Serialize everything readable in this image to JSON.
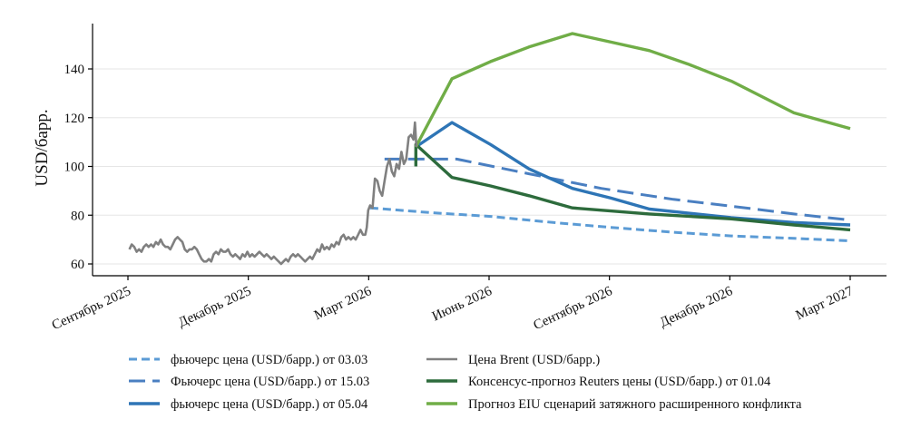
{
  "chart_data": {
    "type": "line",
    "title": "",
    "xlabel": "",
    "ylabel": "USD/барр.",
    "ylim": [
      55,
      158
    ],
    "yticks": [
      60,
      80,
      100,
      120,
      140
    ],
    "xlim": [
      2025.62,
      2027.25
    ],
    "grid": "horizontal",
    "xticks": [
      {
        "t": 2025.667,
        "label": "Сентябрь 2025"
      },
      {
        "t": 2025.917,
        "label": "Декабрь 2025"
      },
      {
        "t": 2026.167,
        "label": "Март 2026"
      },
      {
        "t": 2026.417,
        "label": "Июнь 2026"
      },
      {
        "t": 2026.667,
        "label": "Сентябрь 2026"
      },
      {
        "t": 2026.917,
        "label": "Декабрь 2026"
      },
      {
        "t": 2027.167,
        "label": "Март 2027"
      }
    ],
    "series": [
      {
        "name": "фьючерс цена (USD/барр.) от 03.03",
        "color": "#5b9bd5",
        "style": "dashed-short",
        "points": [
          [
            2026.17,
            83
          ],
          [
            2026.3,
            81
          ],
          [
            2026.42,
            79.5
          ],
          [
            2026.55,
            77
          ],
          [
            2026.67,
            75
          ],
          [
            2026.8,
            73
          ],
          [
            2026.92,
            71.5
          ],
          [
            2027.05,
            70.5
          ],
          [
            2027.167,
            69.5
          ]
        ]
      },
      {
        "name": "Фьючерс цена (USD/барр.) от 15.03",
        "color": "#4a7fc1",
        "style": "dashed-long",
        "points": [
          [
            2026.2,
            103
          ],
          [
            2026.28,
            103
          ],
          [
            2026.35,
            103
          ],
          [
            2026.5,
            97
          ],
          [
            2026.65,
            91
          ],
          [
            2026.8,
            86.5
          ],
          [
            2026.95,
            83
          ],
          [
            2027.05,
            80.5
          ],
          [
            2027.167,
            78
          ]
        ]
      },
      {
        "name": "фьючерс цена (USD/барр.) от 05.04",
        "color": "#2e75b6",
        "style": "solid-thick",
        "points": [
          [
            2026.265,
            108
          ],
          [
            2026.34,
            118
          ],
          [
            2026.42,
            109
          ],
          [
            2026.5,
            99
          ],
          [
            2026.59,
            91
          ],
          [
            2026.67,
            87
          ],
          [
            2026.75,
            82.5
          ],
          [
            2026.92,
            79
          ],
          [
            2027.05,
            77
          ],
          [
            2027.167,
            76
          ]
        ]
      },
      {
        "name": "Цена Brent (USD/барр.)",
        "color": "#808080",
        "style": "solid",
        "points": [
          [
            2025.67,
            66
          ],
          [
            2025.675,
            68
          ],
          [
            2025.68,
            67
          ],
          [
            2025.685,
            65
          ],
          [
            2025.69,
            66
          ],
          [
            2025.695,
            65
          ],
          [
            2025.7,
            67
          ],
          [
            2025.705,
            68
          ],
          [
            2025.71,
            67
          ],
          [
            2025.715,
            68
          ],
          [
            2025.72,
            67
          ],
          [
            2025.725,
            69
          ],
          [
            2025.73,
            68
          ],
          [
            2025.735,
            70
          ],
          [
            2025.74,
            68
          ],
          [
            2025.745,
            67
          ],
          [
            2025.75,
            67
          ],
          [
            2025.755,
            66
          ],
          [
            2025.76,
            68
          ],
          [
            2025.765,
            70
          ],
          [
            2025.77,
            71
          ],
          [
            2025.775,
            70
          ],
          [
            2025.78,
            69
          ],
          [
            2025.785,
            66
          ],
          [
            2025.79,
            65
          ],
          [
            2025.795,
            66
          ],
          [
            2025.8,
            66
          ],
          [
            2025.805,
            67
          ],
          [
            2025.81,
            66
          ],
          [
            2025.815,
            64
          ],
          [
            2025.82,
            62
          ],
          [
            2025.825,
            61
          ],
          [
            2025.83,
            61
          ],
          [
            2025.835,
            62
          ],
          [
            2025.84,
            61
          ],
          [
            2025.845,
            64
          ],
          [
            2025.85,
            65
          ],
          [
            2025.855,
            64
          ],
          [
            2025.86,
            66
          ],
          [
            2025.865,
            65
          ],
          [
            2025.87,
            65
          ],
          [
            2025.875,
            66
          ],
          [
            2025.88,
            64
          ],
          [
            2025.885,
            63
          ],
          [
            2025.89,
            64
          ],
          [
            2025.895,
            63
          ],
          [
            2025.9,
            62
          ],
          [
            2025.905,
            64
          ],
          [
            2025.91,
            63
          ],
          [
            2025.915,
            65
          ],
          [
            2025.92,
            63
          ],
          [
            2025.925,
            64
          ],
          [
            2025.93,
            63
          ],
          [
            2025.935,
            64
          ],
          [
            2025.94,
            65
          ],
          [
            2025.945,
            64
          ],
          [
            2025.95,
            63
          ],
          [
            2025.955,
            64
          ],
          [
            2025.96,
            63
          ],
          [
            2025.965,
            62
          ],
          [
            2025.97,
            63
          ],
          [
            2025.975,
            62
          ],
          [
            2025.98,
            61
          ],
          [
            2025.985,
            60
          ],
          [
            2025.99,
            61
          ],
          [
            2025.995,
            62
          ],
          [
            2026.0,
            61
          ],
          [
            2026.005,
            63
          ],
          [
            2026.01,
            64
          ],
          [
            2026.015,
            63
          ],
          [
            2026.02,
            64
          ],
          [
            2026.025,
            63
          ],
          [
            2026.03,
            62
          ],
          [
            2026.035,
            61
          ],
          [
            2026.04,
            62
          ],
          [
            2026.045,
            63
          ],
          [
            2026.05,
            62
          ],
          [
            2026.055,
            64
          ],
          [
            2026.06,
            66
          ],
          [
            2026.065,
            65
          ],
          [
            2026.07,
            68
          ],
          [
            2026.075,
            66
          ],
          [
            2026.08,
            67
          ],
          [
            2026.085,
            66
          ],
          [
            2026.09,
            68
          ],
          [
            2026.095,
            67
          ],
          [
            2026.1,
            69
          ],
          [
            2026.105,
            68
          ],
          [
            2026.11,
            71
          ],
          [
            2026.115,
            72
          ],
          [
            2026.12,
            70
          ],
          [
            2026.125,
            71
          ],
          [
            2026.13,
            70
          ],
          [
            2026.135,
            71
          ],
          [
            2026.14,
            70
          ],
          [
            2026.145,
            72
          ],
          [
            2026.15,
            74
          ],
          [
            2026.155,
            72
          ],
          [
            2026.16,
            72
          ],
          [
            2026.163,
            75
          ],
          [
            2026.166,
            82
          ],
          [
            2026.17,
            84
          ],
          [
            2026.175,
            83
          ],
          [
            2026.18,
            95
          ],
          [
            2026.185,
            94
          ],
          [
            2026.19,
            90
          ],
          [
            2026.195,
            88
          ],
          [
            2026.2,
            94
          ],
          [
            2026.205,
            100
          ],
          [
            2026.21,
            103
          ],
          [
            2026.215,
            98
          ],
          [
            2026.22,
            96
          ],
          [
            2026.225,
            101
          ],
          [
            2026.23,
            99
          ],
          [
            2026.235,
            106
          ],
          [
            2026.24,
            101
          ],
          [
            2026.245,
            103
          ],
          [
            2026.25,
            112
          ],
          [
            2026.255,
            113
          ],
          [
            2026.26,
            111
          ],
          [
            2026.263,
            118
          ],
          [
            2026.266,
            108
          ]
        ]
      },
      {
        "name": "Консенсус-прогноз Reuters цены (USD/барр.) от 01.04",
        "color": "#2d6b3c",
        "style": "solid-thick",
        "points": [
          [
            2026.265,
            100
          ],
          [
            2026.265,
            109
          ],
          [
            2026.34,
            95.5
          ],
          [
            2026.42,
            92
          ],
          [
            2026.5,
            88
          ],
          [
            2026.59,
            83
          ],
          [
            2026.75,
            80.5
          ],
          [
            2026.92,
            78.5
          ],
          [
            2027.05,
            76
          ],
          [
            2027.167,
            74
          ]
        ]
      },
      {
        "name": "Прогноз EIU сценарий затяжного расширенного конфликта",
        "color": "#70ad47",
        "style": "solid-thick",
        "points": [
          [
            2026.265,
            108
          ],
          [
            2026.34,
            136
          ],
          [
            2026.42,
            143
          ],
          [
            2026.5,
            149
          ],
          [
            2026.59,
            154.5
          ],
          [
            2026.67,
            151
          ],
          [
            2026.75,
            147.5
          ],
          [
            2026.83,
            142
          ],
          [
            2026.92,
            135
          ],
          [
            2027.05,
            122
          ],
          [
            2027.167,
            115.5
          ]
        ]
      }
    ],
    "legend": "bottom-center"
  }
}
